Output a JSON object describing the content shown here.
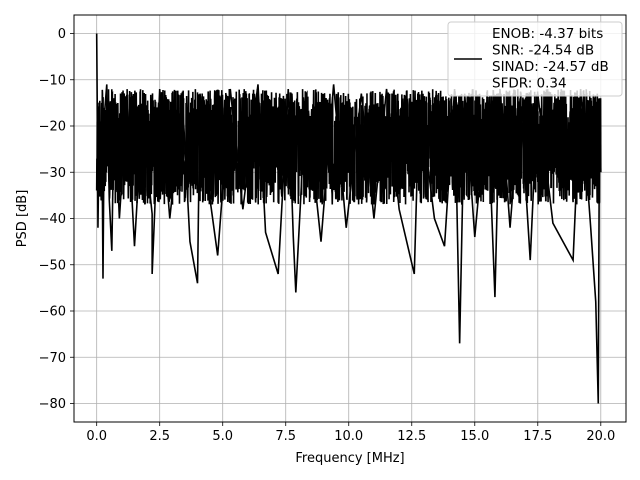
{
  "chart_data": {
    "type": "line",
    "title": "",
    "xlabel": "Frequency [MHz]",
    "ylabel": "PSD [dB]",
    "xlim": [
      -0.9,
      21.0
    ],
    "ylim": [
      -84,
      4
    ],
    "xticks": [
      0.0,
      2.5,
      5.0,
      7.5,
      10.0,
      12.5,
      15.0,
      17.5,
      20.0
    ],
    "xtick_labels": [
      "0.0",
      "2.5",
      "5.0",
      "7.5",
      "10.0",
      "12.5",
      "15.0",
      "17.5",
      "20.0"
    ],
    "yticks": [
      0,
      -10,
      -20,
      -30,
      -40,
      -50,
      -60,
      -70,
      -80
    ],
    "ytick_labels": [
      "0",
      "−10",
      "−20",
      "−30",
      "−40",
      "−50",
      "−60",
      "−70",
      "−80"
    ],
    "grid": true,
    "legend": {
      "placement": "top-right",
      "entries": [
        "ENOB: -4.37 bits",
        "SNR: -24.54 dB",
        "SINAD: -24.57 dB",
        "SFDR: 0.34"
      ]
    },
    "series": [
      {
        "color": "#000000",
        "noise_floor_band": [
          -37,
          -12
        ],
        "points": [
          [
            0.0,
            0.0
          ],
          [
            0.02,
            -14
          ],
          [
            0.05,
            -42
          ],
          [
            0.1,
            -20
          ],
          [
            0.15,
            -35
          ],
          [
            0.2,
            -15
          ],
          [
            0.25,
            -53
          ],
          [
            0.3,
            -18
          ],
          [
            0.4,
            -11
          ],
          [
            0.5,
            -36
          ],
          [
            0.6,
            -47
          ],
          [
            0.7,
            -14
          ],
          [
            0.9,
            -40
          ],
          [
            1.2,
            -15
          ],
          [
            1.5,
            -46
          ],
          [
            1.8,
            -18
          ],
          [
            2.2,
            -39
          ],
          [
            2.2,
            -52
          ],
          [
            2.5,
            -12
          ],
          [
            2.9,
            -40
          ],
          [
            3.4,
            -14
          ],
          [
            3.7,
            -45
          ],
          [
            4.0,
            -54
          ],
          [
            4.1,
            -13
          ],
          [
            4.5,
            -36
          ],
          [
            4.8,
            -48
          ],
          [
            5.3,
            -12
          ],
          [
            5.8,
            -38
          ],
          [
            6.4,
            -11
          ],
          [
            6.7,
            -43
          ],
          [
            7.2,
            -52
          ],
          [
            7.6,
            -12
          ],
          [
            7.8,
            -44
          ],
          [
            7.9,
            -56
          ],
          [
            8.3,
            -14
          ],
          [
            8.9,
            -45
          ],
          [
            9.4,
            -11
          ],
          [
            9.9,
            -42
          ],
          [
            10.5,
            -13
          ],
          [
            11.0,
            -40
          ],
          [
            11.5,
            -12
          ],
          [
            12.0,
            -38
          ],
          [
            12.6,
            -52
          ],
          [
            12.8,
            -14
          ],
          [
            13.4,
            -40
          ],
          [
            13.8,
            -46
          ],
          [
            14.2,
            -12
          ],
          [
            14.4,
            -67
          ],
          [
            14.6,
            -13
          ],
          [
            15.0,
            -44
          ],
          [
            15.5,
            -14
          ],
          [
            15.8,
            -57
          ],
          [
            16.0,
            -12
          ],
          [
            16.4,
            -42
          ],
          [
            16.8,
            -14
          ],
          [
            17.2,
            -49
          ],
          [
            17.5,
            -13
          ],
          [
            18.1,
            -41
          ],
          [
            18.9,
            -49
          ],
          [
            19.2,
            -12
          ],
          [
            19.6,
            -42
          ],
          [
            19.8,
            -58
          ],
          [
            19.9,
            -80
          ],
          [
            19.95,
            -14
          ],
          [
            20.0,
            -30
          ]
        ]
      }
    ]
  }
}
